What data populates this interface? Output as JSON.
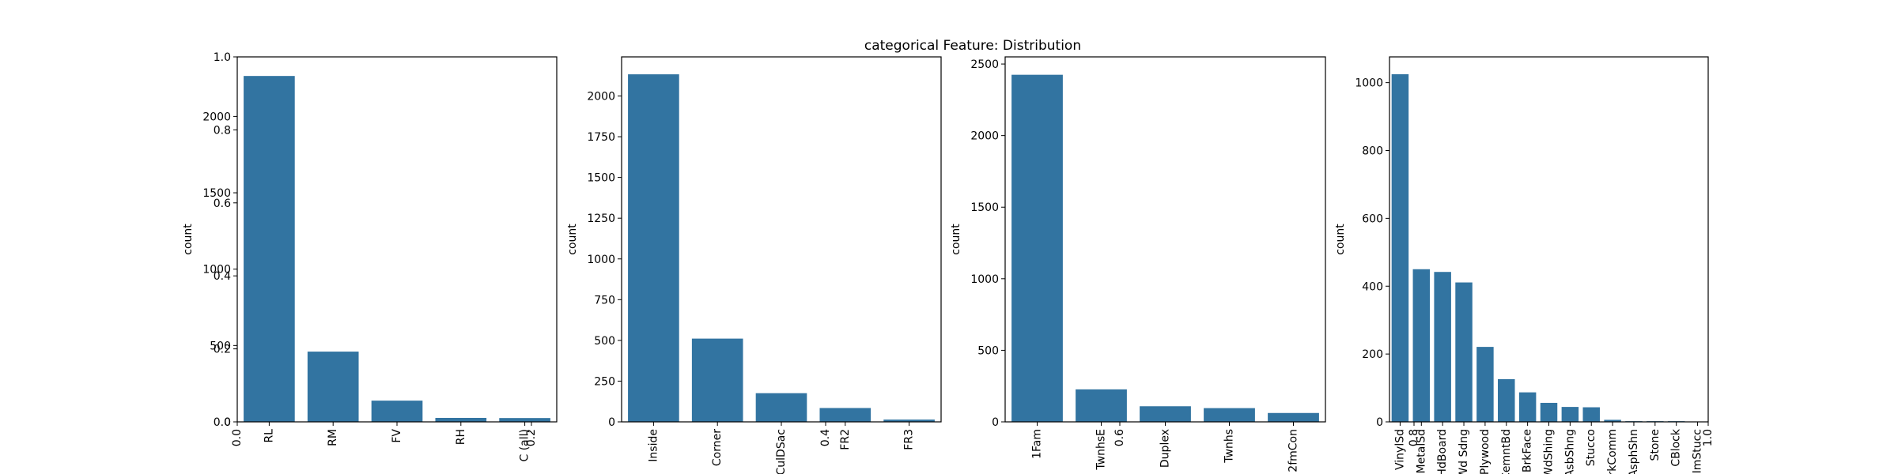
{
  "chart_data": {
    "title": "categorical Feature: Distribution",
    "overlay_axes": {
      "xticks": [
        "0.0",
        "0.2",
        "0.4",
        "0.6",
        "0.8",
        "1.0"
      ],
      "yticks": [
        "0.0",
        "0.2",
        "0.4",
        "0.6",
        "0.8",
        "1.0"
      ],
      "xlim": [
        0,
        1
      ],
      "ylim": [
        0,
        1
      ]
    },
    "panels": [
      {
        "type": "bar",
        "ylabel": "count",
        "categories": [
          "RL",
          "RM",
          "FV",
          "RH",
          "C (all)"
        ],
        "values": [
          2265,
          460,
          139,
          26,
          25
        ],
        "ylim": [
          0,
          2390
        ],
        "yticks": [
          0,
          500,
          1000,
          1500,
          2000
        ],
        "color": "#3274a1"
      },
      {
        "type": "bar",
        "ylabel": "count",
        "categories": [
          "Inside",
          "Corner",
          "CulDSac",
          "FR2",
          "FR3"
        ],
        "values": [
          2133,
          511,
          176,
          85,
          14
        ],
        "ylim": [
          0,
          2240
        ],
        "yticks": [
          0,
          250,
          500,
          750,
          1000,
          1250,
          1500,
          1750,
          2000
        ],
        "color": "#3274a1"
      },
      {
        "type": "bar",
        "ylabel": "count",
        "categories": [
          "1Fam",
          "TwnhsE",
          "Duplex",
          "Twnhs",
          "2fmCon"
        ],
        "values": [
          2425,
          227,
          109,
          96,
          62
        ],
        "ylim": [
          0,
          2550
        ],
        "yticks": [
          0,
          500,
          1000,
          1500,
          2000,
          2500
        ],
        "color": "#3274a1"
      },
      {
        "type": "bar",
        "ylabel": "count",
        "categories": [
          "VinylSd",
          "MetalSd",
          "HdBoard",
          "Wd Sdng",
          "Plywood",
          "CemntBd",
          "BrkFace",
          "WdShing",
          "AsbShng",
          "Stucco",
          "BrkComm",
          "AsphShn",
          "Stone",
          "CBlock",
          "ImStucc"
        ],
        "values": [
          1025,
          450,
          442,
          411,
          221,
          126,
          87,
          56,
          44,
          43,
          6,
          2,
          2,
          2,
          1
        ],
        "ylim": [
          0,
          1076
        ],
        "yticks": [
          0,
          200,
          400,
          600,
          800,
          1000
        ],
        "color": "#3274a1"
      }
    ]
  }
}
